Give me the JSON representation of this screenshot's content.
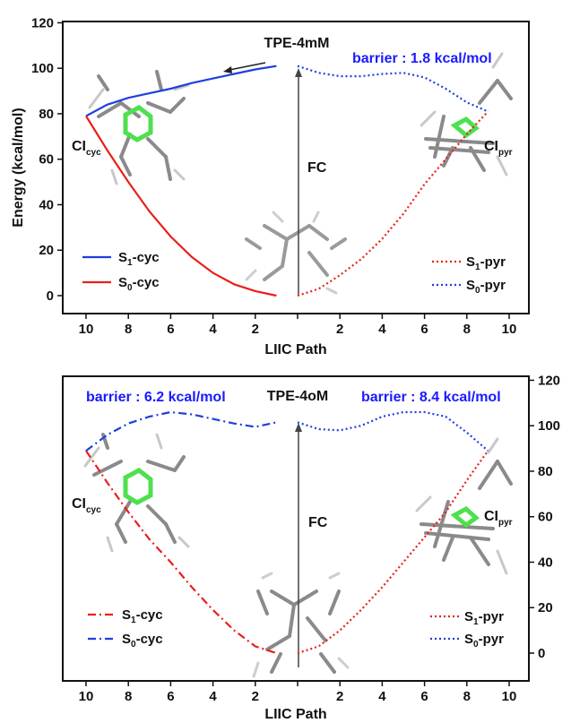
{
  "chart_data": [
    {
      "type": "line",
      "title": "TPE-4mM",
      "xlabel": "LIIC Path",
      "ylabel": "Energy (kcal/mol)",
      "ylim": [
        -10,
        120
      ],
      "x_tick_labels": [
        "10",
        "8",
        "6",
        "4",
        "2",
        "",
        "2",
        "4",
        "6",
        "8",
        "10"
      ],
      "y_tick_labels": [
        "0",
        "20",
        "40",
        "60",
        "80",
        "100",
        "120"
      ],
      "annotations": {
        "barrier": "barrier : 1.8 kcal/mol",
        "fc": "FC",
        "ci_cyc": "CI",
        "ci_cyc_sub": "cyc",
        "ci_pyr": "CI",
        "ci_pyr_sub": "pyr"
      },
      "series": [
        {
          "name": "S1-cyc",
          "legend_main": "S",
          "legend_sub": "1",
          "legend_tail": "-cyc",
          "color": "#1f3fe0",
          "style": "solid",
          "branch": "cyc",
          "values": [
            [
              10,
              79
            ],
            [
              9,
              84
            ],
            [
              8,
              87
            ],
            [
              7,
              89
            ],
            [
              6,
              91
            ],
            [
              5,
              93.5
            ],
            [
              4,
              95.5
            ],
            [
              3,
              97.5
            ],
            [
              2,
              99.5
            ],
            [
              1,
              101
            ]
          ]
        },
        {
          "name": "S0-cyc",
          "legend_main": "S",
          "legend_sub": "0",
          "legend_tail": "-cyc",
          "color": "#e8201a",
          "style": "solid",
          "branch": "cyc",
          "values": [
            [
              10,
              79
            ],
            [
              9,
              64
            ],
            [
              8,
              50
            ],
            [
              7,
              37
            ],
            [
              6,
              26
            ],
            [
              5,
              17
            ],
            [
              4,
              10
            ],
            [
              3,
              5
            ],
            [
              2,
              2
            ],
            [
              1,
              0
            ]
          ]
        },
        {
          "name": "S1-pyr",
          "legend_main": "S",
          "legend_sub": "1",
          "legend_tail": "-pyr",
          "color": "#e8201a",
          "style": "dotted",
          "branch": "pyr",
          "values": [
            [
              1,
              0
            ],
            [
              2,
              3
            ],
            [
              3,
              9
            ],
            [
              4,
              16
            ],
            [
              5,
              25
            ],
            [
              6,
              36
            ],
            [
              7,
              49
            ],
            [
              8,
              60
            ],
            [
              9,
              71
            ],
            [
              10,
              81
            ]
          ]
        },
        {
          "name": "S0-pyr",
          "legend_main": "S",
          "legend_sub": "0",
          "legend_tail": "-pyr",
          "color": "#1f3fe0",
          "style": "dotted",
          "branch": "pyr",
          "values": [
            [
              1,
              101
            ],
            [
              2,
              98
            ],
            [
              3,
              96.5
            ],
            [
              4,
              96.5
            ],
            [
              5,
              97.5
            ],
            [
              6,
              98
            ],
            [
              7,
              96
            ],
            [
              8,
              91
            ],
            [
              9,
              85
            ],
            [
              10,
              81
            ]
          ]
        }
      ]
    },
    {
      "type": "line",
      "title": "TPE-4oM",
      "xlabel": "LIIC Path",
      "ylabel": "",
      "ylim": [
        -10,
        120
      ],
      "x_tick_labels": [
        "10",
        "8",
        "6",
        "4",
        "2",
        "",
        "2",
        "4",
        "6",
        "8",
        "10"
      ],
      "y_tick_labels": [
        "0",
        "20",
        "40",
        "60",
        "80",
        "100",
        "120"
      ],
      "annotations": {
        "barrier_left": "barrier : 6.2 kcal/mol",
        "barrier_right": "barrier : 8.4 kcal/mol",
        "fc": "FC",
        "ci_cyc": "CI",
        "ci_cyc_sub": "cyc",
        "ci_pyr": "CI",
        "ci_pyr_sub": "pyr"
      },
      "series": [
        {
          "name": "S1-cyc",
          "legend_main": "S",
          "legend_sub": "1",
          "legend_tail": "-cyc",
          "color": "#e8201a",
          "style": "dashdot",
          "branch": "cyc",
          "values": [
            [
              10,
              89
            ],
            [
              9,
              75
            ],
            [
              8,
              62
            ],
            [
              7,
              50
            ],
            [
              6,
              40
            ],
            [
              5,
              29
            ],
            [
              4,
              19
            ],
            [
              3,
              10
            ],
            [
              2,
              3
            ],
            [
              1,
              0
            ]
          ]
        },
        {
          "name": "S0-cyc",
          "legend_main": "S",
          "legend_sub": "0",
          "legend_tail": "-cyc",
          "color": "#1f3fe0",
          "style": "dashdot",
          "branch": "cyc",
          "values": [
            [
              10,
              89
            ],
            [
              9,
              96
            ],
            [
              8,
              101
            ],
            [
              7,
              104
            ],
            [
              6,
              106
            ],
            [
              5,
              105
            ],
            [
              4,
              103
            ],
            [
              3,
              101
            ],
            [
              2,
              99.5
            ],
            [
              1,
              101.5
            ]
          ]
        },
        {
          "name": "S1-pyr",
          "legend_main": "S",
          "legend_sub": "1",
          "legend_tail": "-pyr",
          "color": "#e8201a",
          "style": "dotted",
          "branch": "pyr",
          "values": [
            [
              1,
              0
            ],
            [
              2,
              3
            ],
            [
              3,
              10
            ],
            [
              4,
              19
            ],
            [
              5,
              29
            ],
            [
              6,
              40
            ],
            [
              7,
              51
            ],
            [
              8,
              62
            ],
            [
              9,
              76
            ],
            [
              10,
              89
            ]
          ]
        },
        {
          "name": "S0-pyr",
          "legend_main": "S",
          "legend_sub": "0",
          "legend_tail": "-pyr",
          "color": "#1f3fe0",
          "style": "dotted",
          "branch": "pyr",
          "values": [
            [
              1,
              101.5
            ],
            [
              2,
              98.5
            ],
            [
              3,
              98
            ],
            [
              4,
              100
            ],
            [
              5,
              104
            ],
            [
              6,
              106
            ],
            [
              7,
              106
            ],
            [
              8,
              104
            ],
            [
              9,
              97
            ],
            [
              10,
              89
            ]
          ]
        }
      ]
    }
  ]
}
